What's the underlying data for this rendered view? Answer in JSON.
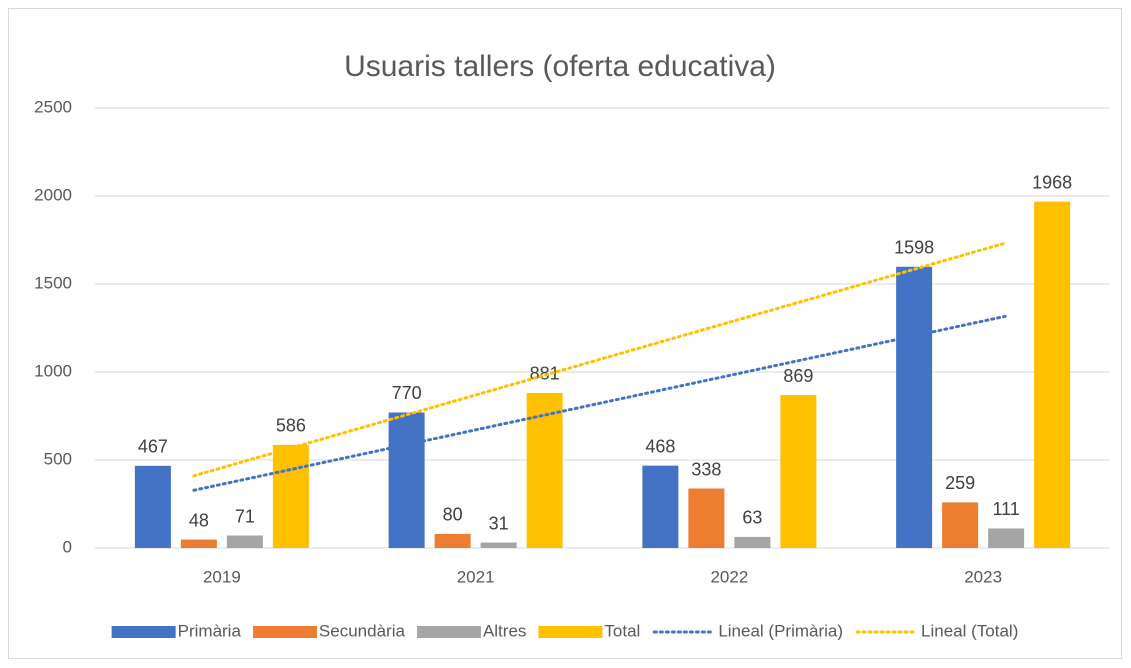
{
  "chart_data": {
    "type": "bar",
    "title": "Usuaris tallers (oferta educativa)",
    "categories": [
      "2019",
      "2021",
      "2022",
      "2023"
    ],
    "series": [
      {
        "name": "Primària",
        "color": "#4472c4",
        "values": [
          467,
          770,
          468,
          1598
        ]
      },
      {
        "name": "Secundària",
        "color": "#ed7d31",
        "values": [
          48,
          80,
          338,
          259
        ]
      },
      {
        "name": "Altres",
        "color": "#a5a5a5",
        "values": [
          71,
          31,
          63,
          111
        ]
      },
      {
        "name": "Total",
        "color": "#ffc000",
        "values": [
          586,
          881,
          869,
          1968
        ]
      }
    ],
    "trendlines": [
      {
        "name": "Lineal (Primària)",
        "series": "Primària",
        "color": "#4472c4"
      },
      {
        "name": "Lineal (Total)",
        "series": "Total",
        "color": "#ffc000"
      }
    ],
    "ylim": [
      0,
      2500
    ],
    "yticks": [
      0,
      500,
      1000,
      1500,
      2000,
      2500
    ],
    "grid": true,
    "legend": "bottom"
  }
}
